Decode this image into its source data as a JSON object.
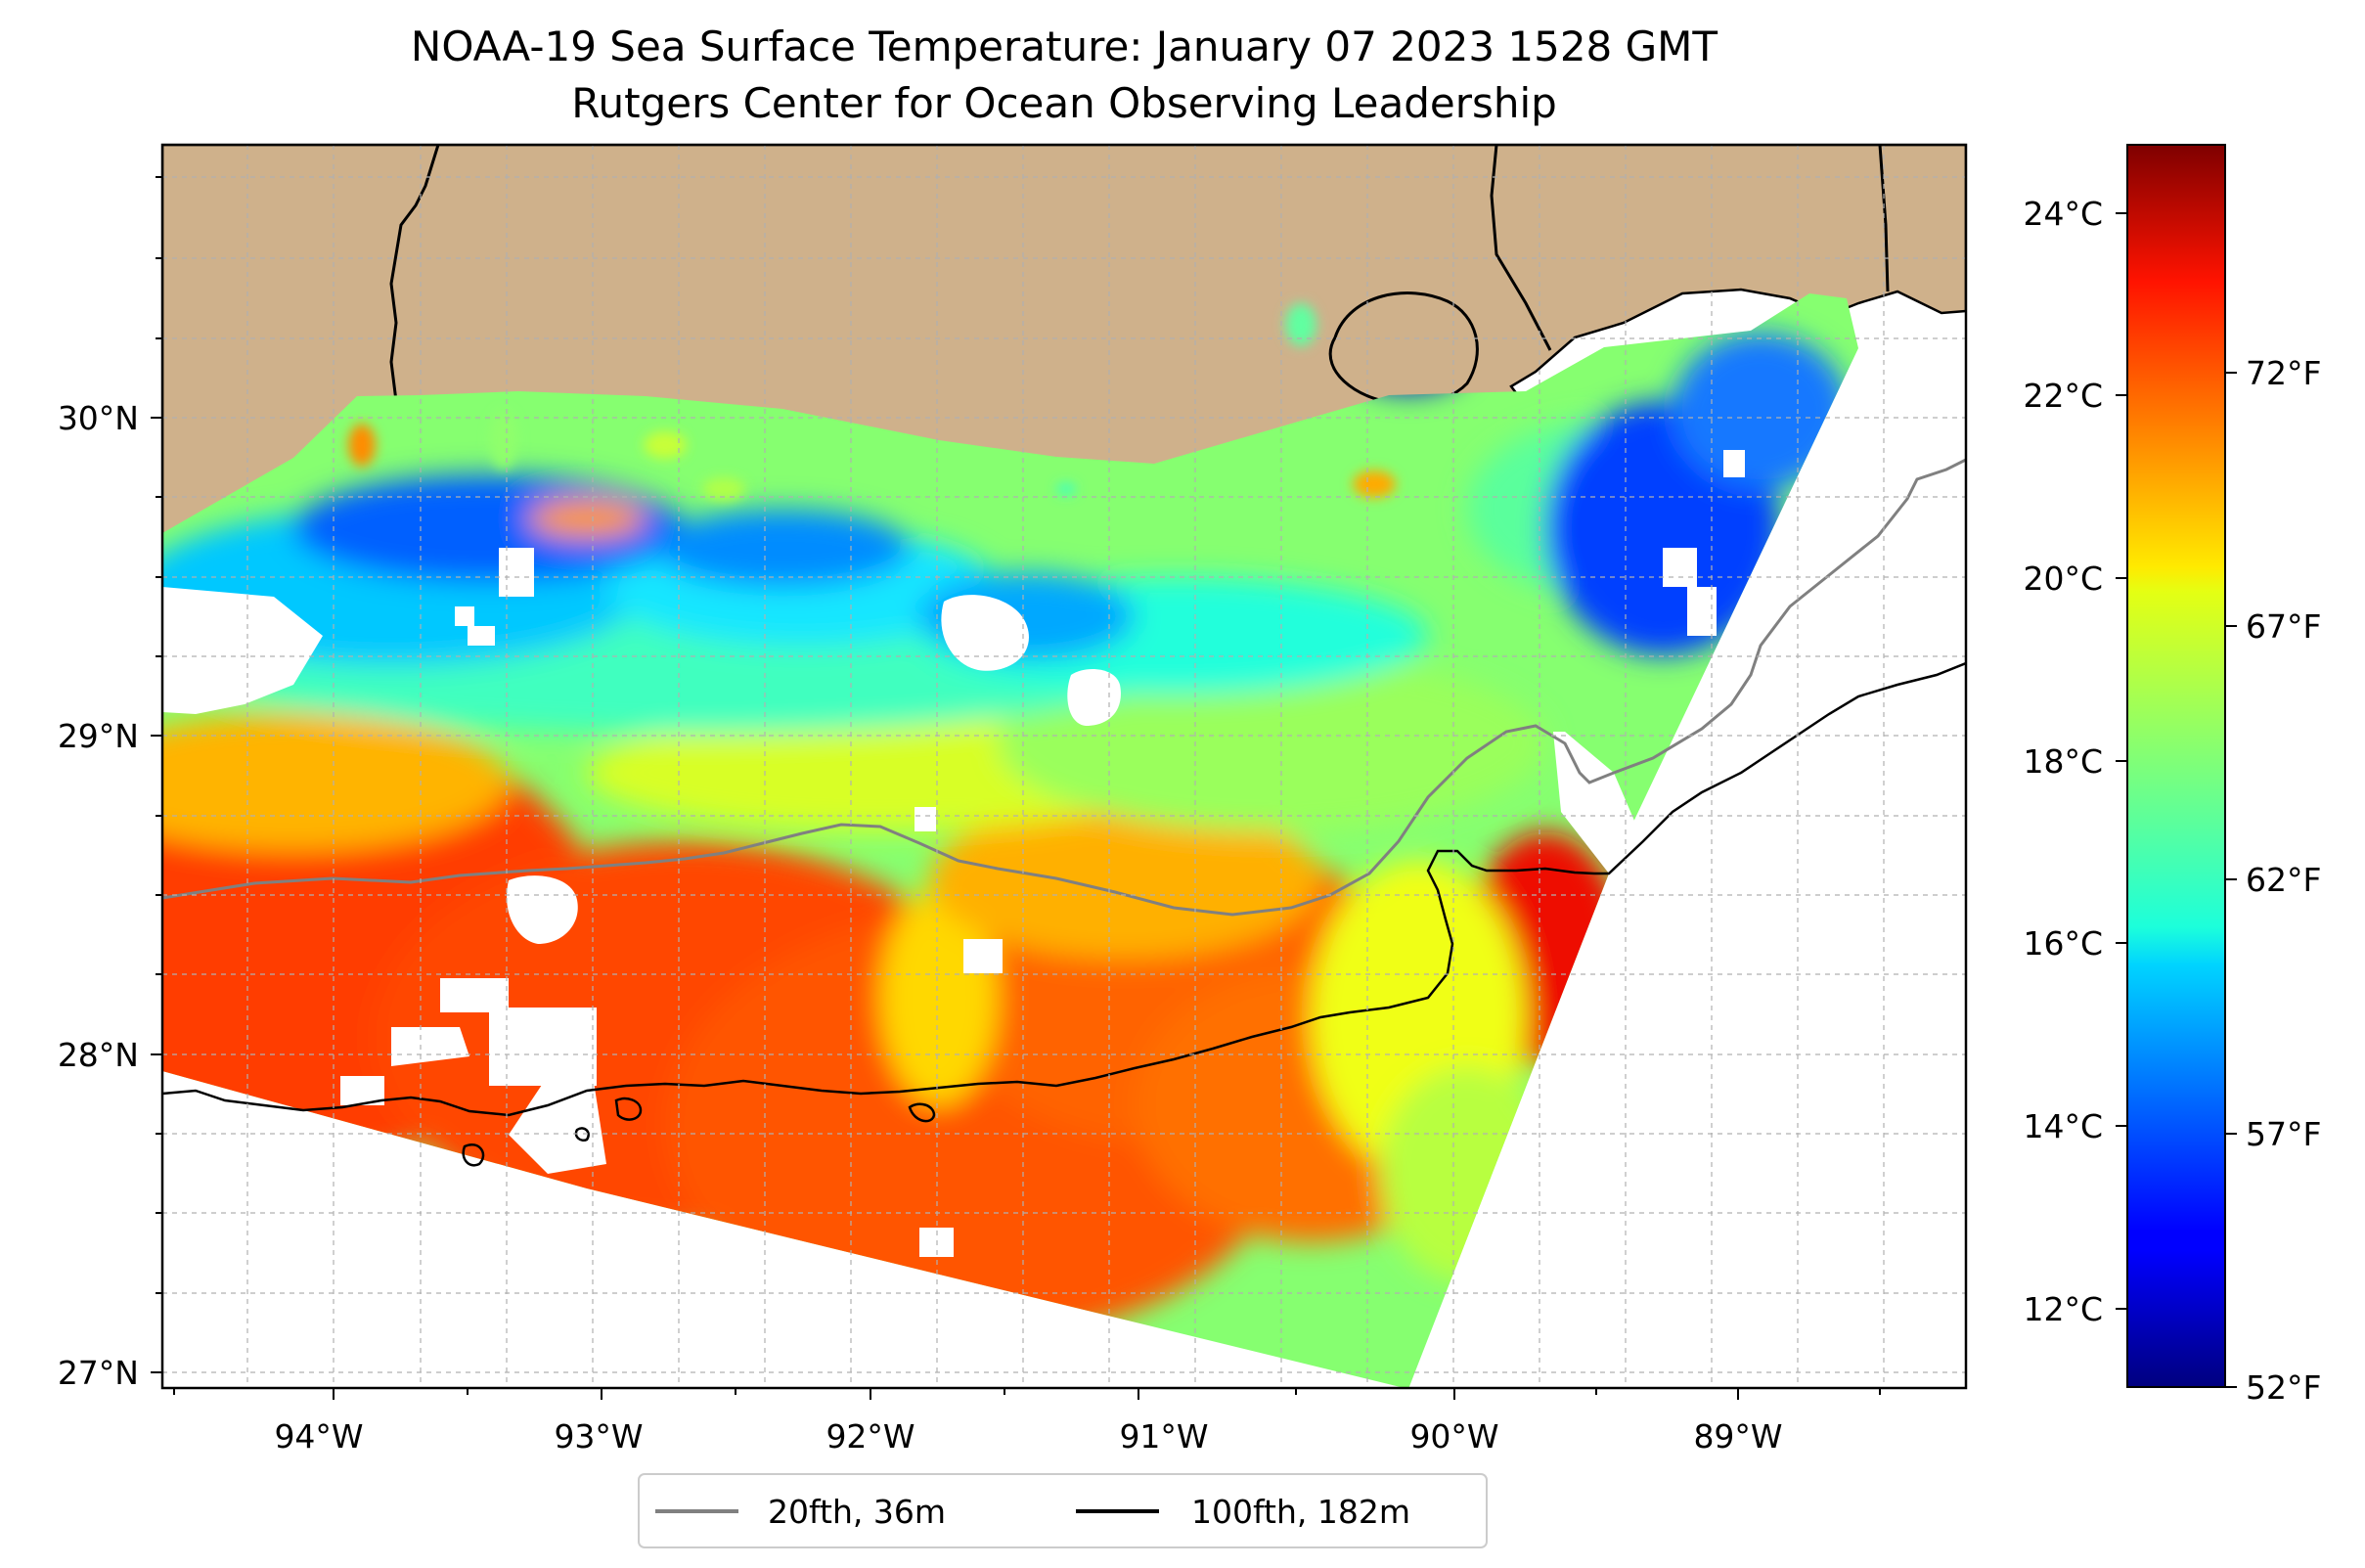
{
  "title": "NOAA-19 Sea Surface Temperature: January 07 2023 1528 GMT",
  "subtitle": "Rutgers Center for Ocean Observing Leadership",
  "map": {
    "lon_range": [
      -94.55,
      -88.22
    ],
    "lat_range": [
      26.93,
      30.86
    ],
    "x_ticks": [
      "94°W",
      "93°W",
      "92°W",
      "91°W",
      "90°W",
      "89°W"
    ],
    "y_ticks": [
      "30°N",
      "29°N",
      "28°N",
      "27°N"
    ],
    "gridlines": true,
    "land_color": "#cfb18b",
    "ocean_color": "#ffffff"
  },
  "colorbar": {
    "colormap": "jet",
    "celsius_range": [
      11.1,
      24.7
    ],
    "celsius_ticks": [
      "12°C",
      "14°C",
      "16°C",
      "18°C",
      "20°C",
      "22°C",
      "24°C"
    ],
    "fahrenheit_ticks": [
      "52°F",
      "57°F",
      "62°F",
      "67°F",
      "72°F"
    ]
  },
  "legend": {
    "placement": "bottom-center",
    "items": [
      {
        "label": "20fth, 36m",
        "color": "#808080"
      },
      {
        "label": "100fth, 182m",
        "color": "#000000"
      }
    ]
  }
}
